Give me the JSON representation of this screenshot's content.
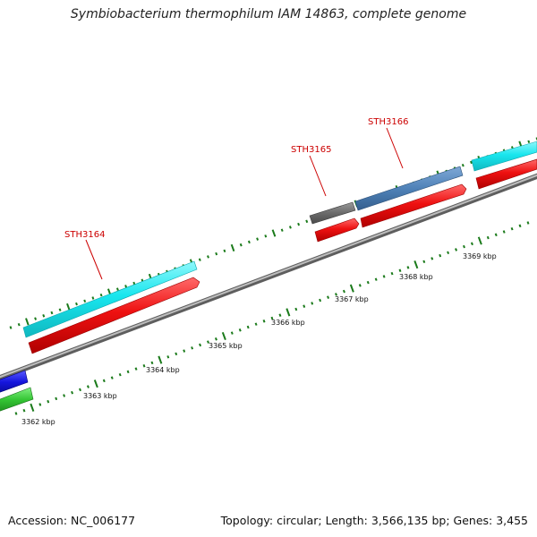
{
  "title": "Symbiobacterium thermophilum IAM 14863, complete genome",
  "footer": {
    "accession": "Accession: NC_006177",
    "summary": "Topology: circular; Length: 3,566,135 bp; Genes: 3,455"
  },
  "gene_labels": [
    "STH3164",
    "STH3165",
    "STH3166"
  ],
  "kbp_labels": [
    "3362 kbp",
    "3363 kbp",
    "3364 kbp",
    "3365 kbp",
    "3366 kbp",
    "3367 kbp",
    "3368 kbp",
    "3369 kbp"
  ],
  "colors": {
    "backbone": "#8a8a8a",
    "forward_cyan": "#19e6ee",
    "reverse_red": "#ee1111",
    "gray_feature": "#6b6b6b",
    "steel_blue": "#4f82b8",
    "blue": "#1515dd",
    "green": "#33c433",
    "tick_green": "#1a7a1a",
    "label_red": "#cc0000"
  }
}
